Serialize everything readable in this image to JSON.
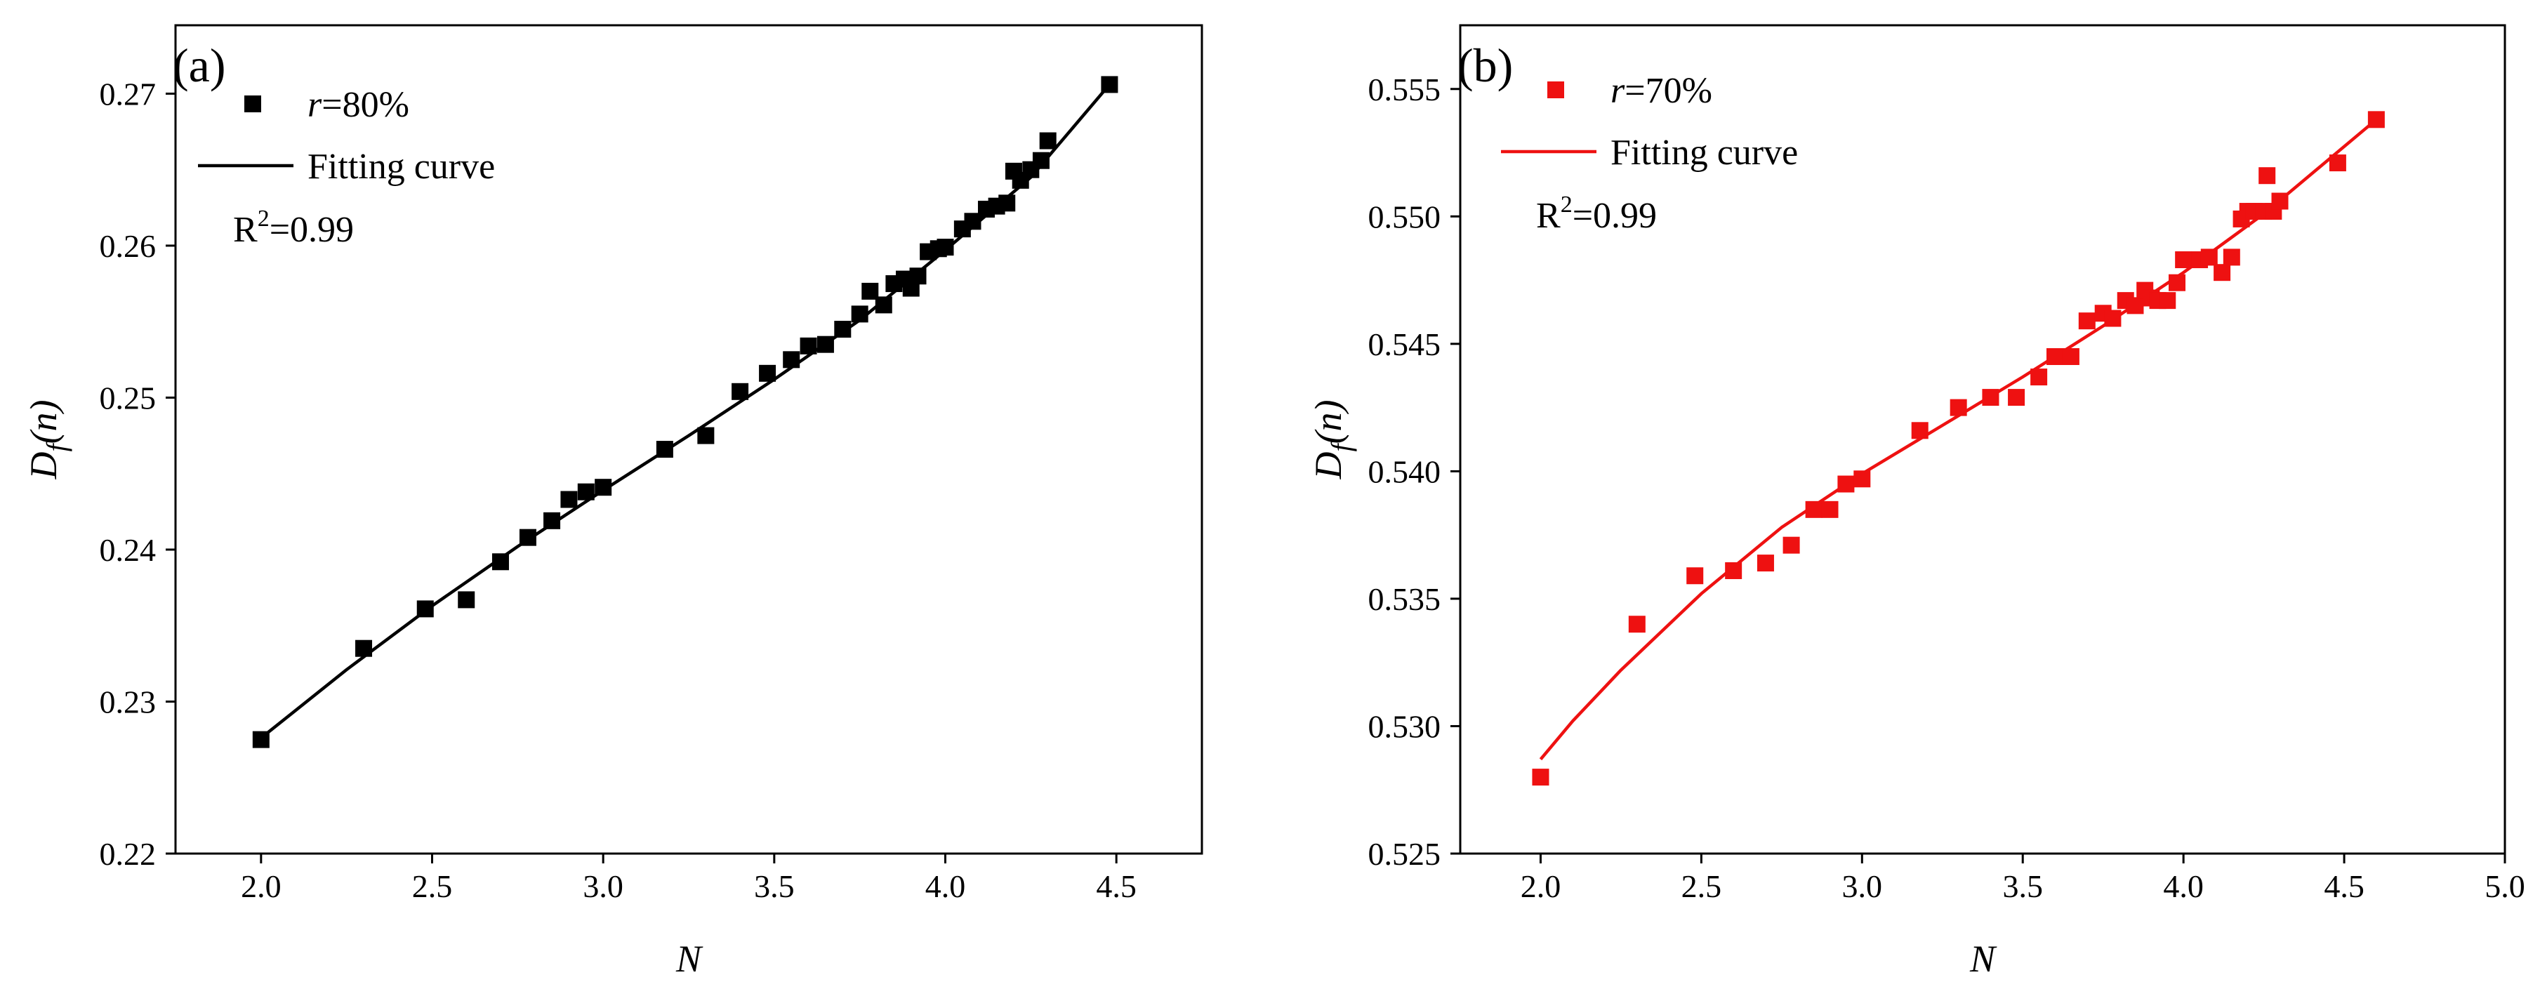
{
  "chart_data": [
    {
      "panel_label": "(a)",
      "type": "scatter",
      "xlabel": "N",
      "ylabel": {
        "main": "D",
        "sub": "f",
        "rest": "(n)"
      },
      "xlim": [
        1.75,
        4.75
      ],
      "ylim": [
        0.22,
        0.2745
      ],
      "xticks": [
        "2.0",
        "2.5",
        "3.0",
        "3.5",
        "4.0",
        "4.5"
      ],
      "yticks": [
        "0.22",
        "0.23",
        "0.24",
        "0.25",
        "0.26",
        "0.27"
      ],
      "color": "#000000",
      "legend": {
        "series_label": {
          "italic": "r",
          "rest": "=80%"
        },
        "fit_label": "Fitting curve",
        "r2": {
          "base": "R",
          "sup": "2",
          "rest": "=0.99"
        }
      },
      "series": [
        {
          "name": "r=80%",
          "x": [
            2.0,
            2.3,
            2.48,
            2.6,
            2.7,
            2.78,
            2.85,
            2.9,
            2.95,
            3.0,
            3.18,
            3.3,
            3.4,
            3.48,
            3.55,
            3.6,
            3.65,
            3.7,
            3.75,
            3.78,
            3.82,
            3.85,
            3.88,
            3.9,
            3.92,
            3.95,
            3.98,
            4.0,
            4.05,
            4.08,
            4.12,
            4.15,
            4.18,
            4.2,
            4.22,
            4.25,
            4.28,
            4.3,
            4.48
          ],
          "y": [
            0.2275,
            0.2335,
            0.2361,
            0.2367,
            0.2392,
            0.2408,
            0.2419,
            0.2433,
            0.2438,
            0.2441,
            0.2466,
            0.2475,
            0.2504,
            0.2516,
            0.2525,
            0.2534,
            0.2535,
            0.2545,
            0.2555,
            0.257,
            0.2561,
            0.2575,
            0.2578,
            0.2572,
            0.258,
            0.2596,
            0.2598,
            0.2599,
            0.2611,
            0.2616,
            0.2624,
            0.2626,
            0.2628,
            0.2649,
            0.2643,
            0.265,
            0.2656,
            0.2669,
            0.2706
          ]
        }
      ],
      "fit": {
        "x": [
          2.0,
          2.25,
          2.5,
          2.75,
          3.0,
          3.25,
          3.5,
          3.75,
          4.0,
          4.25,
          4.48
        ],
        "y": [
          0.2276,
          0.2321,
          0.2363,
          0.2402,
          0.2439,
          0.2475,
          0.2512,
          0.2551,
          0.2597,
          0.2645,
          0.2706
        ]
      }
    },
    {
      "panel_label": "(b)",
      "type": "scatter",
      "xlabel": "N",
      "ylabel": {
        "main": "D",
        "sub": "f",
        "rest": "(n)"
      },
      "xlim": [
        1.75,
        5.0
      ],
      "ylim": [
        0.525,
        0.5575
      ],
      "xticks": [
        "2.0",
        "2.5",
        "3.0",
        "3.5",
        "4.0",
        "4.5",
        "5.0"
      ],
      "yticks": [
        "0.525",
        "0.530",
        "0.535",
        "0.540",
        "0.545",
        "0.550",
        "0.555"
      ],
      "color": "#ee1111",
      "legend": {
        "series_label": {
          "italic": "r",
          "rest": "=70%"
        },
        "fit_label": "Fitting curve",
        "r2": {
          "base": "R",
          "sup": "2",
          "rest": "=0.99"
        }
      },
      "series": [
        {
          "name": "r=70%",
          "x": [
            2.0,
            2.3,
            2.48,
            2.6,
            2.7,
            2.78,
            2.85,
            2.9,
            2.95,
            3.0,
            3.18,
            3.3,
            3.4,
            3.48,
            3.55,
            3.6,
            3.65,
            3.7,
            3.75,
            3.78,
            3.82,
            3.85,
            3.88,
            3.9,
            3.92,
            3.95,
            3.98,
            4.0,
            4.05,
            4.08,
            4.12,
            4.15,
            4.18,
            4.2,
            4.22,
            4.25,
            4.26,
            4.28,
            4.3,
            4.48,
            4.6
          ],
          "y": [
            0.528,
            0.534,
            0.5359,
            0.5361,
            0.5364,
            0.5371,
            0.5385,
            0.5385,
            0.5395,
            0.5397,
            0.5416,
            0.5425,
            0.5429,
            0.5429,
            0.5437,
            0.5445,
            0.5445,
            0.5459,
            0.5462,
            0.546,
            0.5467,
            0.5465,
            0.5471,
            0.5468,
            0.5467,
            0.5467,
            0.5474,
            0.5483,
            0.5483,
            0.5484,
            0.5478,
            0.5484,
            0.5499,
            0.5502,
            0.5502,
            0.5502,
            0.5516,
            0.5502,
            0.5506,
            0.5521,
            0.5538
          ]
        }
      ],
      "fit": {
        "x": [
          2.0,
          2.1,
          2.25,
          2.5,
          2.75,
          3.0,
          3.25,
          3.5,
          3.75,
          4.0,
          4.25,
          4.6
        ],
        "y": [
          0.5287,
          0.5302,
          0.5322,
          0.5352,
          0.5378,
          0.5399,
          0.5418,
          0.5437,
          0.5457,
          0.5478,
          0.5501,
          0.5538
        ]
      }
    }
  ]
}
